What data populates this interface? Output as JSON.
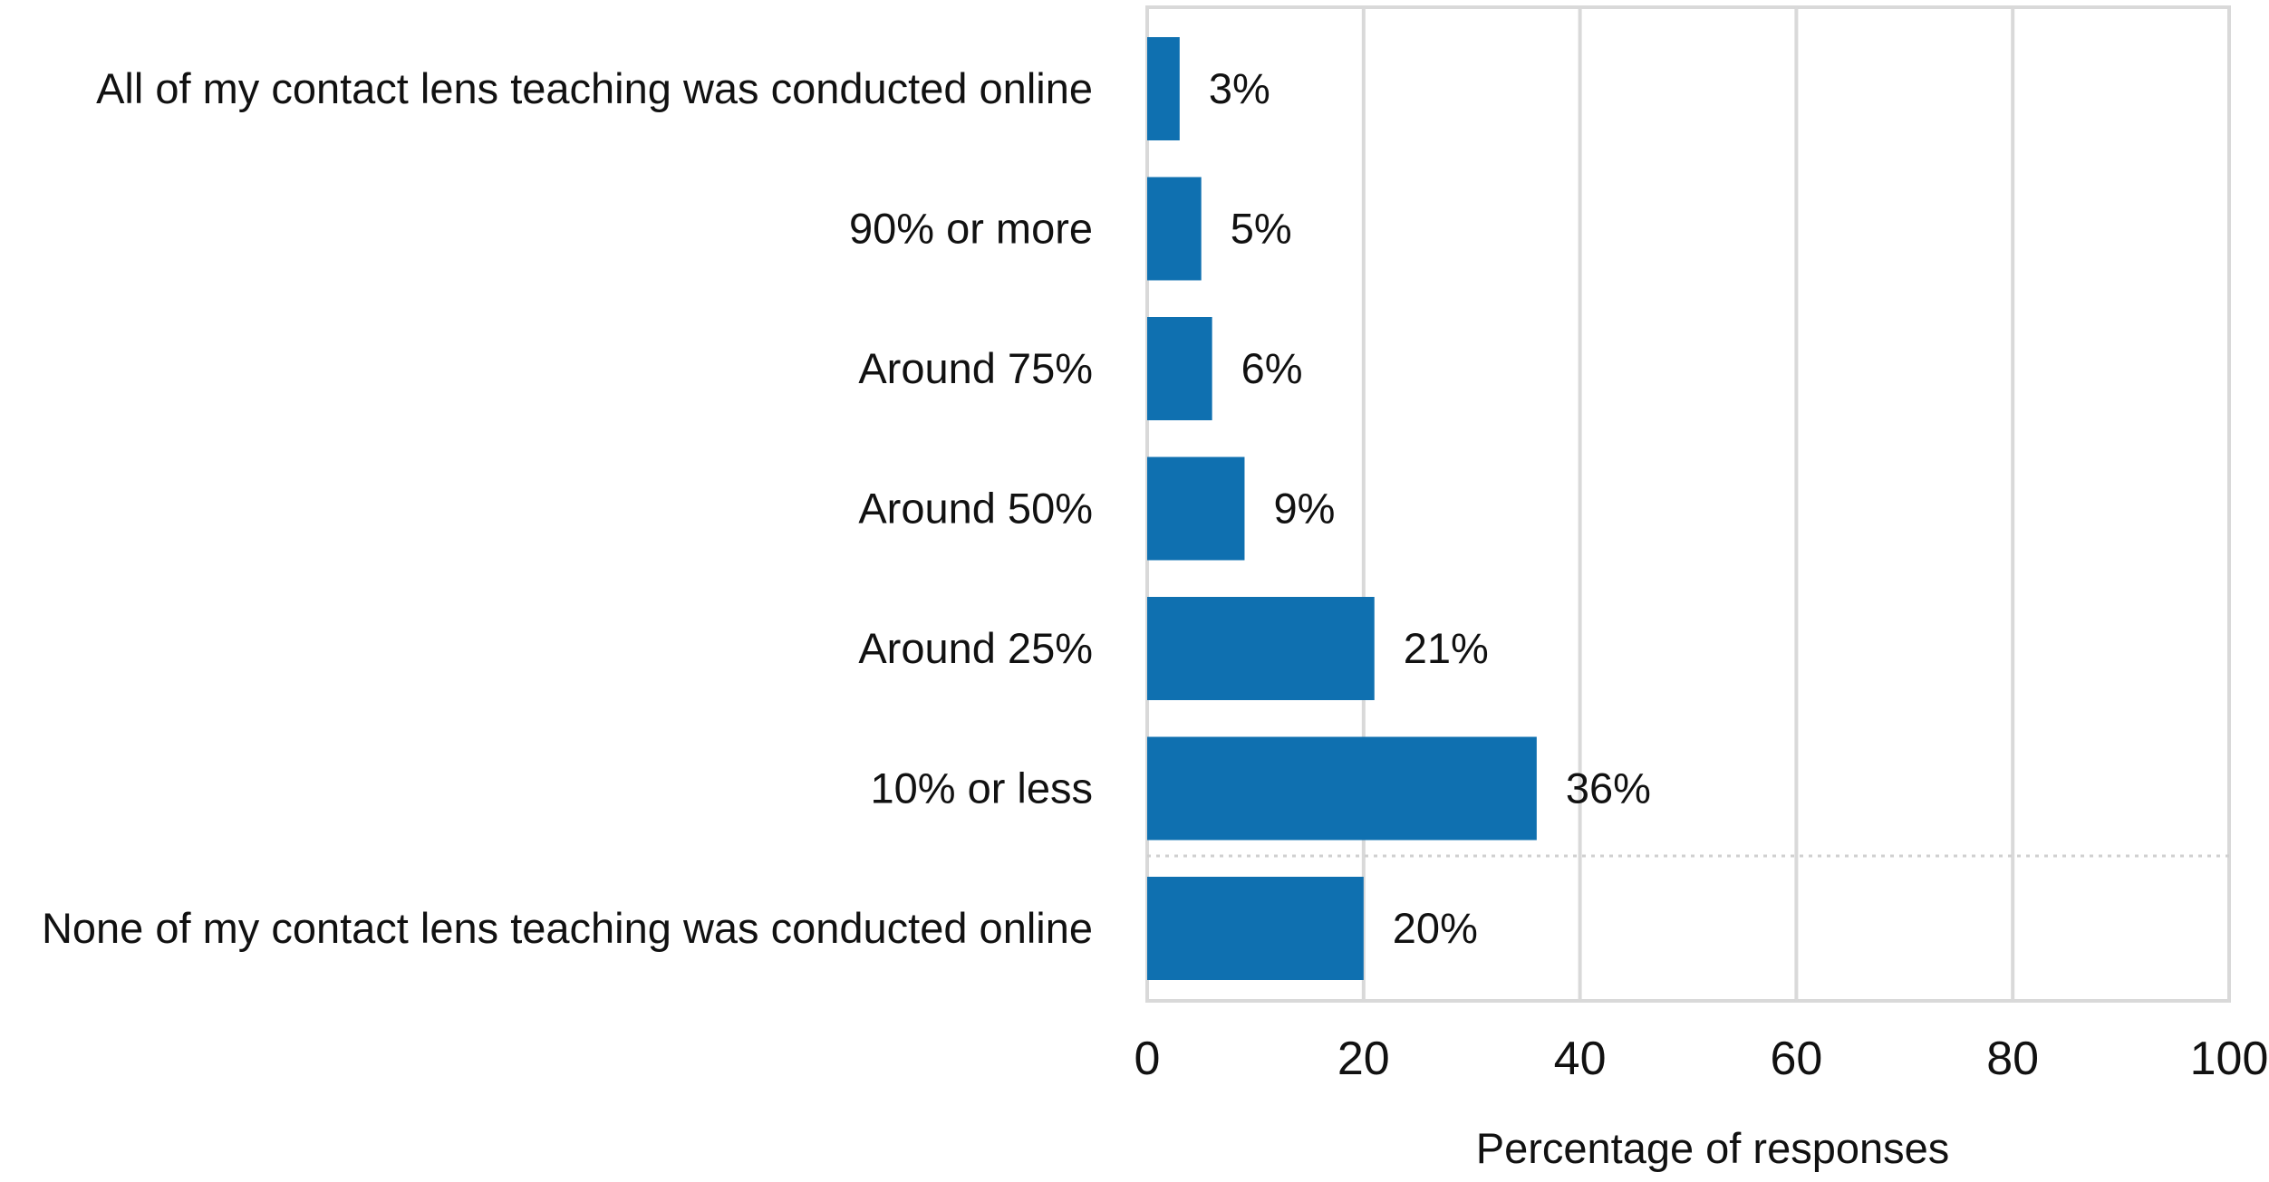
{
  "chart_data": {
    "type": "bar",
    "orientation": "horizontal",
    "categories": [
      "All of my contact lens teaching was conducted online",
      "90% or more",
      "Around 75%",
      "Around 50%",
      "Around 25%",
      "10% or less",
      "None of my contact lens teaching was conducted online"
    ],
    "values": [
      3,
      5,
      6,
      9,
      21,
      36,
      20
    ],
    "data_labels": [
      "3%",
      "5%",
      "6%",
      "9%",
      "21%",
      "36%",
      "20%"
    ],
    "xlabel": "Percentage of responses",
    "xlim": [
      0,
      100
    ],
    "xticks": [
      0,
      20,
      40,
      60,
      80,
      100
    ],
    "xtick_labels": [
      "0",
      "20",
      "40",
      "60",
      "80",
      "100"
    ],
    "grid": "vertical",
    "legend": "none",
    "bar_color": "#0f70b0"
  }
}
